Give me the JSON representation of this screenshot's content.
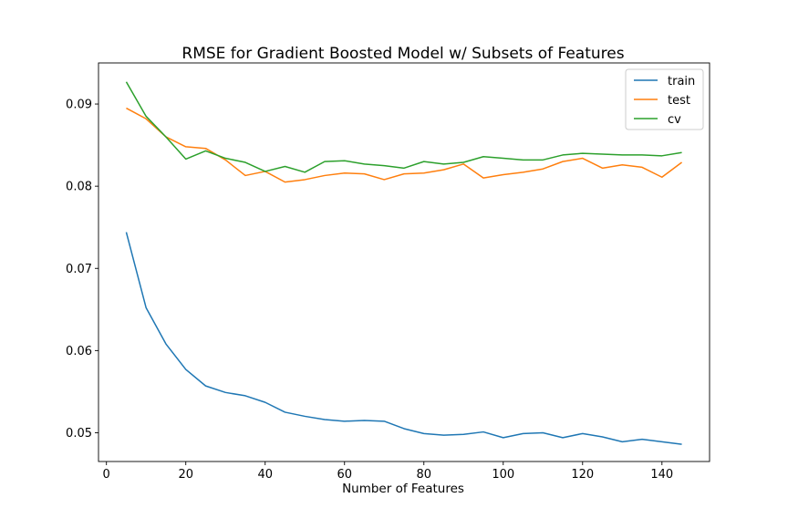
{
  "chart_data": {
    "type": "line",
    "title": "RMSE for Gradient Boosted Model w/ Subsets of Features",
    "xlabel": "Number of Features",
    "ylabel": "",
    "xlim": [
      -2,
      152
    ],
    "ylim": [
      0.0465,
      0.095
    ],
    "xticks": [
      0,
      20,
      40,
      60,
      80,
      100,
      120,
      140
    ],
    "xtick_labels": [
      "0",
      "20",
      "40",
      "60",
      "80",
      "100",
      "120",
      "140"
    ],
    "yticks": [
      0.05,
      0.06,
      0.07,
      0.08,
      0.09
    ],
    "ytick_labels": [
      "0.05",
      "0.06",
      "0.07",
      "0.08",
      "0.09"
    ],
    "grid": false,
    "legend_position": "top-right",
    "x": [
      5,
      10,
      15,
      20,
      25,
      30,
      35,
      40,
      45,
      50,
      55,
      60,
      65,
      70,
      75,
      80,
      85,
      90,
      95,
      100,
      105,
      110,
      115,
      120,
      125,
      130,
      135,
      140,
      145
    ],
    "series": [
      {
        "name": "train",
        "color": "#1f77b4",
        "values": [
          0.0744,
          0.0652,
          0.0608,
          0.0577,
          0.0557,
          0.0549,
          0.0545,
          0.0537,
          0.0525,
          0.052,
          0.0516,
          0.0514,
          0.0515,
          0.0514,
          0.0505,
          0.0499,
          0.0497,
          0.0498,
          0.0501,
          0.0494,
          0.0499,
          0.05,
          0.0494,
          0.0499,
          0.0495,
          0.0489,
          0.0492,
          0.0489,
          0.0486
        ]
      },
      {
        "name": "test",
        "color": "#ff7f0e",
        "values": [
          0.0895,
          0.0882,
          0.086,
          0.0848,
          0.0846,
          0.0832,
          0.0813,
          0.0818,
          0.0805,
          0.0808,
          0.0813,
          0.0816,
          0.0815,
          0.0808,
          0.0815,
          0.0816,
          0.082,
          0.0827,
          0.081,
          0.0814,
          0.0817,
          0.0821,
          0.083,
          0.0834,
          0.0822,
          0.0826,
          0.0823,
          0.0811,
          0.0829
        ]
      },
      {
        "name": "cv",
        "color": "#2ca02c",
        "values": [
          0.0927,
          0.0885,
          0.086,
          0.0833,
          0.0843,
          0.0834,
          0.0829,
          0.0818,
          0.0824,
          0.0817,
          0.083,
          0.0831,
          0.0827,
          0.0825,
          0.0822,
          0.083,
          0.0827,
          0.0829,
          0.0836,
          0.0834,
          0.0832,
          0.0832,
          0.0838,
          0.084,
          0.0839,
          0.0838,
          0.0838,
          0.0837,
          0.0841
        ]
      }
    ]
  }
}
